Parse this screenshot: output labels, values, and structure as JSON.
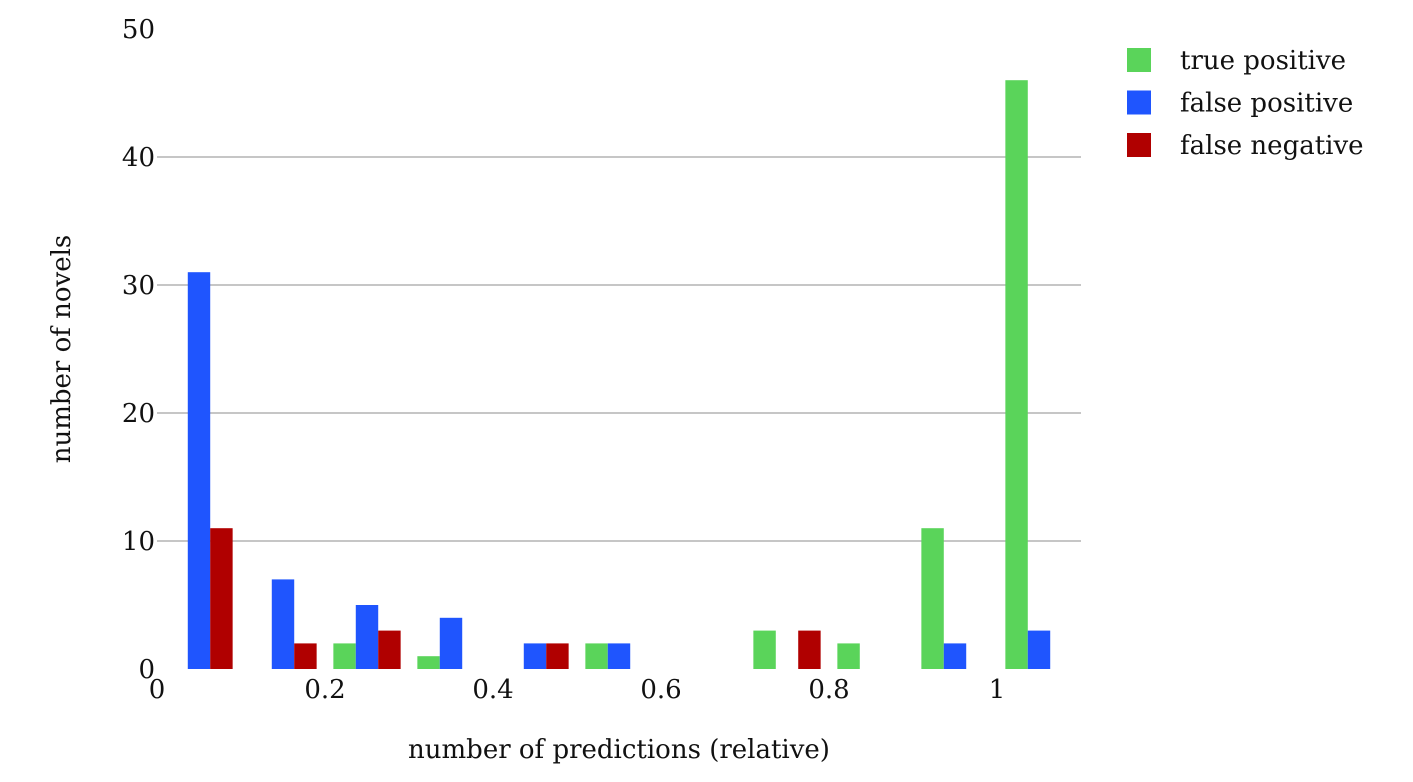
{
  "chart_data": {
    "type": "bar",
    "title": "",
    "xlabel": "number of predictions (relative)",
    "ylabel": "number of novels",
    "xlim": [
      0,
      1.1
    ],
    "ylim": [
      0,
      50
    ],
    "x_ticks": [
      "0",
      "0.2",
      "0.4",
      "0.6",
      "0.8",
      "1"
    ],
    "y_ticks": [
      "0",
      "10",
      "20",
      "30",
      "40",
      "50"
    ],
    "grid": "horizontal",
    "legend_position": "top-right",
    "bin_centers": [
      0.05,
      0.15,
      0.25,
      0.35,
      0.45,
      0.55,
      0.65,
      0.75,
      0.85,
      0.95,
      1.05
    ],
    "series": [
      {
        "name": "true positive",
        "color": "#5ad45a",
        "values": [
          0,
          0,
          2,
          1,
          0,
          2,
          0,
          3,
          2,
          11,
          46
        ]
      },
      {
        "name": "false positive",
        "color": "#1f55fe",
        "values": [
          31,
          7,
          5,
          4,
          2,
          2,
          0,
          0,
          0,
          2,
          3
        ]
      },
      {
        "name": "false negative",
        "color": "#b00000",
        "values": [
          11,
          2,
          3,
          0,
          2,
          0,
          0,
          3,
          0,
          0,
          0
        ]
      }
    ]
  }
}
